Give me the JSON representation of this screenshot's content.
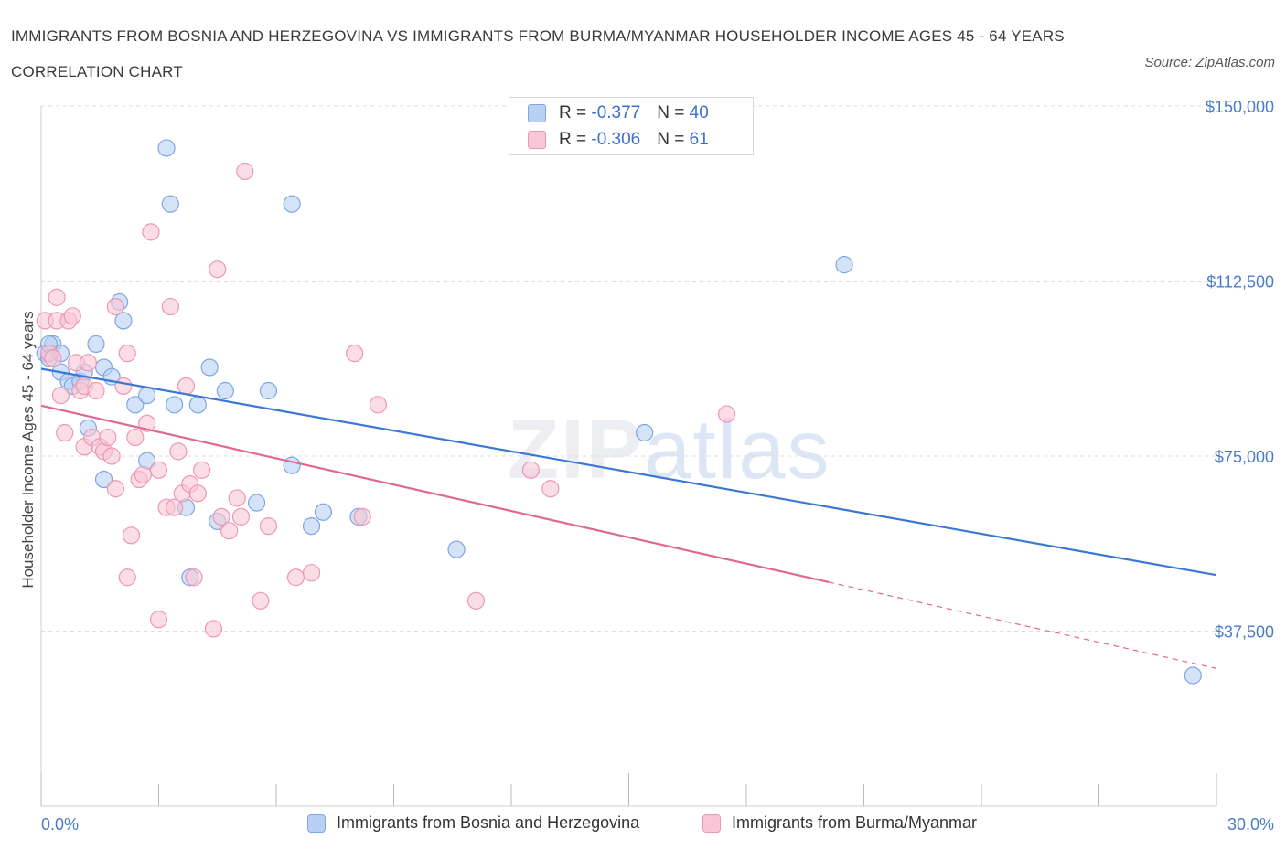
{
  "title": "IMMIGRANTS FROM BOSNIA AND HERZEGOVINA VS IMMIGRANTS FROM BURMA/MYANMAR HOUSEHOLDER INCOME AGES 45 - 64 YEARS CORRELATION CHART",
  "source": "Source: ZipAtlas.com",
  "watermark": {
    "zip": "ZIP",
    "atlas": "atlas"
  },
  "legend_top": [
    {
      "r_label": "R = ",
      "r_value": "-0.377",
      "n_label": "N = ",
      "n_value": "40"
    },
    {
      "r_label": "R = ",
      "r_value": "-0.306",
      "n_label": "N = ",
      "n_value": "61"
    }
  ],
  "colors": {
    "blue_fill": "#b8d0f4",
    "blue_stroke": "#7ea6e0",
    "blue_line": "#3a78d4",
    "pink_fill": "#f8c6d6",
    "pink_stroke": "#ec98b4",
    "pink_line": "#e06890",
    "grid": "#dddddd",
    "axis_text": "#4a7cc9"
  },
  "chart_data": {
    "type": "scatter",
    "title": "IMMIGRANTS FROM BOSNIA AND HERZEGOVINA VS IMMIGRANTS FROM BURMA/MYANMAR HOUSEHOLDER INCOME AGES 45 - 64 YEARS CORRELATION CHART",
    "xlabel": "",
    "ylabel": "Householder Income Ages 45 - 64 years",
    "xlim": [
      0,
      30
    ],
    "ylim": [
      0,
      150000
    ],
    "x_tick_labels": [
      "0.0%",
      "30.0%"
    ],
    "y_ticks": [
      37500,
      75000,
      112500,
      150000
    ],
    "y_tick_labels": [
      "$37,500",
      "$75,000",
      "$112,500",
      "$150,000"
    ],
    "grid": true,
    "legend_position": "bottom",
    "series": [
      {
        "name": "Immigrants from Bosnia and Herzegovina",
        "r": -0.377,
        "n": 40,
        "trend": {
          "x": [
            0,
            30
          ],
          "y": [
            93700,
            49500
          ]
        },
        "points": [
          [
            0.1,
            97000
          ],
          [
            0.2,
            96000
          ],
          [
            0.3,
            99000
          ],
          [
            0.5,
            93000
          ],
          [
            0.5,
            97000
          ],
          [
            0.7,
            91000
          ],
          [
            0.8,
            90000
          ],
          [
            1.0,
            91000
          ],
          [
            1.1,
            93000
          ],
          [
            1.2,
            81000
          ],
          [
            1.4,
            99000
          ],
          [
            1.6,
            94000
          ],
          [
            1.6,
            70000
          ],
          [
            1.8,
            92000
          ],
          [
            2.0,
            108000
          ],
          [
            2.1,
            104000
          ],
          [
            2.4,
            86000
          ],
          [
            2.7,
            88000
          ],
          [
            2.7,
            74000
          ],
          [
            3.2,
            141000
          ],
          [
            3.3,
            129000
          ],
          [
            3.4,
            86000
          ],
          [
            3.7,
            64000
          ],
          [
            3.8,
            49000
          ],
          [
            4.0,
            86000
          ],
          [
            4.3,
            94000
          ],
          [
            4.5,
            61000
          ],
          [
            4.7,
            89000
          ],
          [
            5.5,
            65000
          ],
          [
            5.8,
            89000
          ],
          [
            6.4,
            73000
          ],
          [
            6.4,
            129000
          ],
          [
            6.9,
            60000
          ],
          [
            7.2,
            63000
          ],
          [
            8.1,
            62000
          ],
          [
            10.6,
            55000
          ],
          [
            15.4,
            80000
          ],
          [
            20.5,
            116000
          ],
          [
            29.4,
            28000
          ],
          [
            0.2,
            99000
          ]
        ]
      },
      {
        "name": "Immigrants from Burma/Myanmar",
        "r": -0.306,
        "n": 61,
        "trend": {
          "x": [
            0,
            20.1
          ],
          "y": [
            85800,
            48000
          ]
        },
        "trend_dashed": {
          "x": [
            20.1,
            30
          ],
          "y": [
            48000,
            29500
          ]
        },
        "points": [
          [
            0.1,
            104000
          ],
          [
            0.2,
            97000
          ],
          [
            0.3,
            96000
          ],
          [
            0.4,
            104000
          ],
          [
            0.4,
            109000
          ],
          [
            0.5,
            88000
          ],
          [
            0.6,
            80000
          ],
          [
            0.7,
            104000
          ],
          [
            0.8,
            105000
          ],
          [
            0.9,
            95000
          ],
          [
            1.0,
            89000
          ],
          [
            1.1,
            77000
          ],
          [
            1.1,
            90000
          ],
          [
            1.2,
            95000
          ],
          [
            1.3,
            79000
          ],
          [
            1.4,
            89000
          ],
          [
            1.5,
            77000
          ],
          [
            1.6,
            76000
          ],
          [
            1.7,
            79000
          ],
          [
            1.8,
            75000
          ],
          [
            1.9,
            68000
          ],
          [
            1.9,
            107000
          ],
          [
            2.1,
            90000
          ],
          [
            2.2,
            97000
          ],
          [
            2.3,
            58000
          ],
          [
            2.2,
            49000
          ],
          [
            2.4,
            79000
          ],
          [
            2.5,
            70000
          ],
          [
            2.6,
            71000
          ],
          [
            2.7,
            82000
          ],
          [
            2.8,
            123000
          ],
          [
            3.0,
            72000
          ],
          [
            3.0,
            40000
          ],
          [
            3.2,
            64000
          ],
          [
            3.3,
            107000
          ],
          [
            3.4,
            64000
          ],
          [
            3.5,
            76000
          ],
          [
            3.6,
            67000
          ],
          [
            3.7,
            90000
          ],
          [
            3.8,
            69000
          ],
          [
            3.9,
            49000
          ],
          [
            4.0,
            67000
          ],
          [
            4.1,
            72000
          ],
          [
            4.4,
            38000
          ],
          [
            4.5,
            115000
          ],
          [
            4.6,
            62000
          ],
          [
            4.8,
            59000
          ],
          [
            5.0,
            66000
          ],
          [
            5.1,
            62000
          ],
          [
            5.2,
            136000
          ],
          [
            5.6,
            44000
          ],
          [
            5.8,
            60000
          ],
          [
            6.5,
            49000
          ],
          [
            6.9,
            50000
          ],
          [
            8.0,
            97000
          ],
          [
            8.2,
            62000
          ],
          [
            8.6,
            86000
          ],
          [
            11.1,
            44000
          ],
          [
            12.5,
            72000
          ],
          [
            13.0,
            68000
          ],
          [
            17.5,
            84000
          ]
        ]
      }
    ]
  }
}
